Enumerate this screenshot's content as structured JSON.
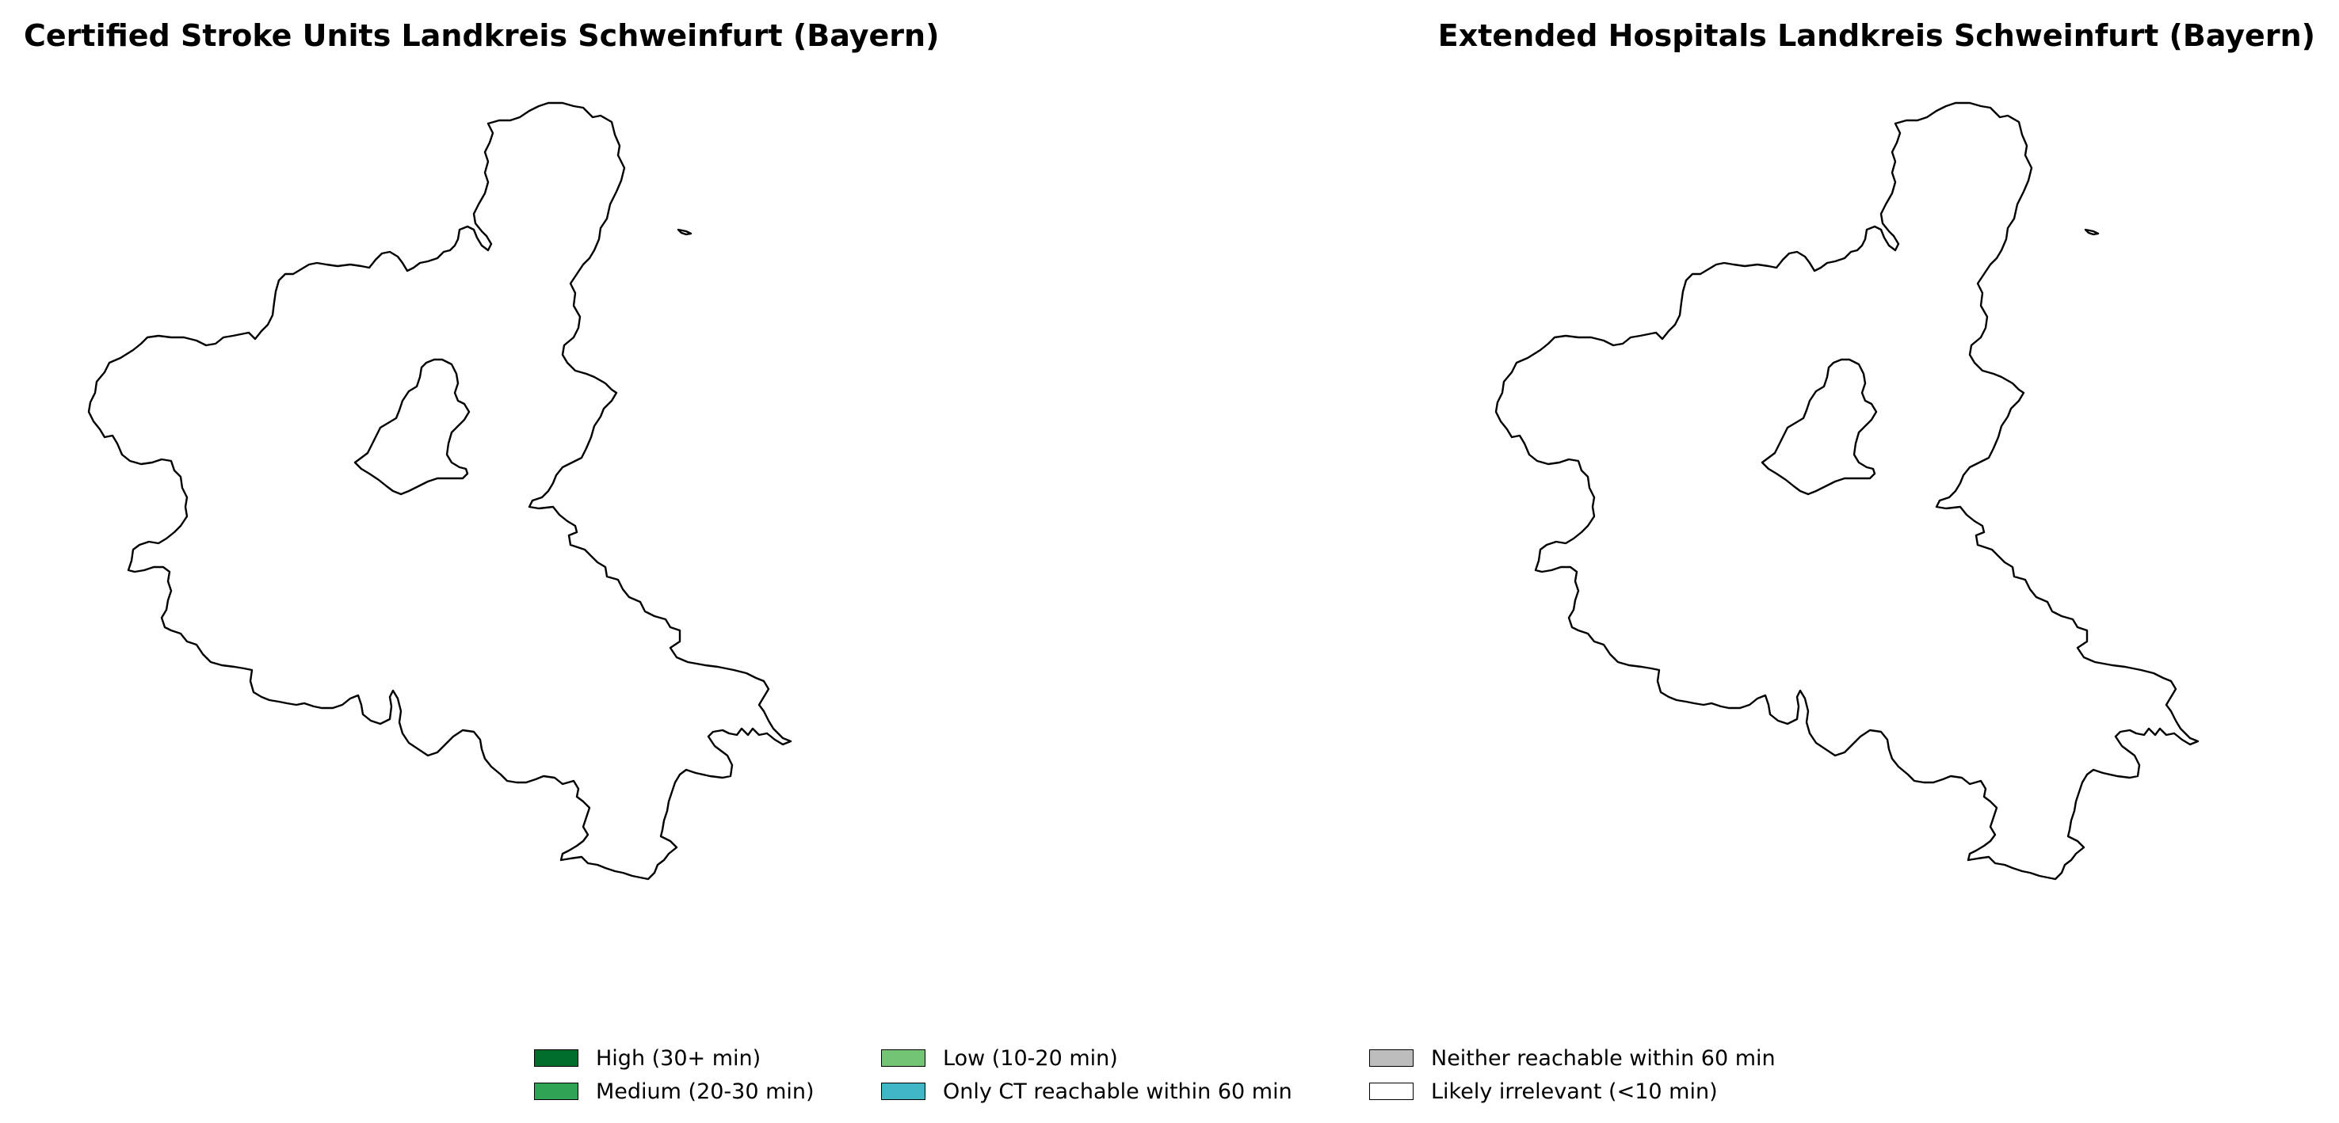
{
  "panels": [
    {
      "title": "Certified Stroke Units Landkreis Schweinfurt (Bayern)"
    },
    {
      "title": "Extended Hospitals Landkreis Schweinfurt (Bayern)"
    }
  ],
  "legend": {
    "items": [
      {
        "label": "High (30+ min)",
        "color": "#006d2c"
      },
      {
        "label": "Medium (20-30 min)",
        "color": "#31a354"
      },
      {
        "label": "Low (10-20 min)",
        "color": "#74c476"
      },
      {
        "label": "Only CT reachable within 60 min",
        "color": "#41b6c4"
      },
      {
        "label": "Neither reachable within 60 min",
        "color": "#bdbdbd"
      },
      {
        "label": "Likely irrelevant (<10 min)",
        "color": "#ffffff"
      }
    ]
  }
}
